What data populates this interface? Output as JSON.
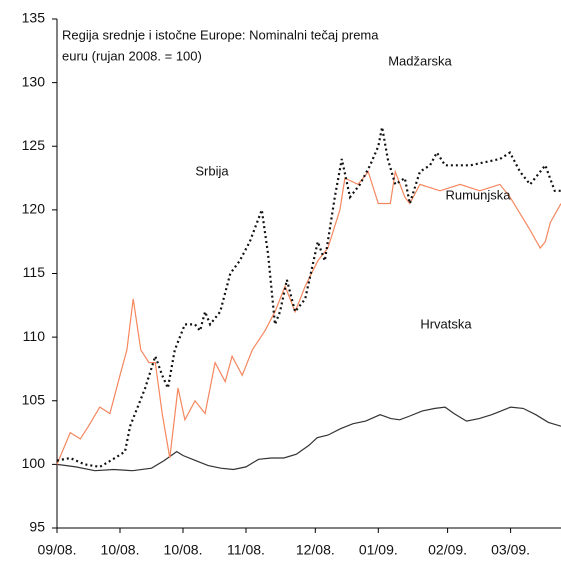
{
  "chart_data": {
    "type": "line",
    "title": [
      "Regija srednje i istočne Europe: Nominalni tečaj prema",
      "euru (rujan 2008. = 100)"
    ],
    "annotations": [
      "Madžarska"
    ],
    "xlim": [
      0,
      80
    ],
    "xticks": [
      {
        "value": 0,
        "label": "09/08."
      },
      {
        "value": 10,
        "label": "10/08."
      },
      {
        "value": 20,
        "label": "10/08."
      },
      {
        "value": 30,
        "label": "11/08."
      },
      {
        "value": 41,
        "label": "12/08."
      },
      {
        "value": 51,
        "label": "01/09."
      },
      {
        "value": 62,
        "label": "02/09."
      },
      {
        "value": 72,
        "label": "03/09."
      }
    ],
    "ylim": [
      95,
      135
    ],
    "yticks": [
      95,
      100,
      105,
      110,
      115,
      120,
      125,
      130,
      135
    ],
    "series": [
      {
        "name": "Hrvatska",
        "color": "#333333",
        "style": "solid",
        "x": [
          0,
          3,
          6,
          9,
          12,
          15,
          17,
          19,
          20,
          22,
          24,
          26,
          28,
          30,
          32,
          34,
          36,
          38,
          40,
          41.3,
          43,
          45,
          47,
          49,
          51.3,
          53,
          54.4,
          56,
          58,
          60,
          61.6,
          63,
          65,
          67,
          69,
          71,
          72,
          74,
          76,
          78,
          80
        ],
        "values": [
          100,
          99.8,
          99.5,
          99.6,
          99.5,
          99.7,
          100.3,
          101.0,
          100.7,
          100.3,
          99.9,
          99.7,
          99.6,
          99.8,
          100.4,
          100.5,
          100.5,
          100.8,
          101.5,
          102.1,
          102.3,
          102.8,
          103.2,
          103.4,
          103.9,
          103.6,
          103.5,
          103.8,
          104.2,
          104.4,
          104.5,
          104.0,
          103.4,
          103.6,
          103.9,
          104.3,
          104.5,
          104.4,
          103.9,
          103.3,
          103.0
        ]
      },
      {
        "name": "Rumunjska",
        "color": "#f5875f",
        "style": "solid",
        "x": [
          0,
          2.1,
          3.7,
          5,
          6.8,
          8.4,
          10,
          11.1,
          12.1,
          13.3,
          14.6,
          15.6,
          16.7,
          17.9,
          19.2,
          20.3,
          21.9,
          23.5,
          25.1,
          26.7,
          27.8,
          29.4,
          31,
          33,
          34.6,
          36.2,
          37.8,
          39.4,
          41.4,
          43,
          44.9,
          45.7,
          47.8,
          49.4,
          51,
          52.9,
          53.7,
          55.2,
          56,
          57.6,
          60.8,
          64,
          67.1,
          70.3,
          71.9,
          75,
          76.7,
          77.5,
          78.3,
          80
        ],
        "values": [
          100,
          102.5,
          102,
          103,
          104.5,
          104,
          107,
          109,
          113,
          109,
          108,
          108,
          104,
          100.5,
          106,
          103.5,
          105,
          104,
          108,
          106.5,
          108.5,
          107,
          109,
          110.5,
          112,
          114,
          112,
          114,
          116,
          117,
          120,
          122.5,
          122,
          123,
          120.5,
          120.5,
          123,
          121,
          120.5,
          122,
          121.5,
          122,
          121.5,
          122,
          121,
          118.5,
          117,
          117.5,
          119,
          120.5
        ]
      },
      {
        "name": "Srbija",
        "color": "#111111",
        "style": "dotted",
        "x": [
          0,
          2.1,
          4.4,
          6.8,
          9.2,
          10.8,
          11.6,
          14,
          15.6,
          16.7,
          17.6,
          18.7,
          20.3,
          21.9,
          22.7,
          23.5,
          24.3,
          25.9,
          27.5,
          29.0,
          30.6,
          32.5,
          33.5,
          34.6,
          35.4,
          36.5,
          37.8,
          39.4,
          41.4,
          42.5,
          44.1,
          45.2,
          46.5,
          48.1,
          49.7,
          51,
          51.6,
          52.5,
          53.7,
          55.2,
          56,
          57.6,
          59.2,
          60.3,
          61.6,
          65.6,
          70.3,
          71.9,
          73.5,
          75.1,
          77.5,
          79.0,
          80
        ],
        "values": [
          100.3,
          100.5,
          100,
          99.8,
          100.5,
          101,
          103,
          106,
          108.5,
          107,
          106,
          109,
          111,
          111,
          110.5,
          112,
          111,
          112,
          115,
          116,
          117.5,
          120,
          116.5,
          111,
          112,
          114.5,
          112,
          113,
          117.5,
          116,
          121,
          124,
          121,
          122,
          123.5,
          125,
          126.5,
          124,
          122,
          122.5,
          120.5,
          123,
          123.5,
          124.5,
          123.5,
          123.5,
          124,
          124.5,
          123,
          122,
          123.5,
          121.5,
          121.5
        ]
      }
    ]
  }
}
